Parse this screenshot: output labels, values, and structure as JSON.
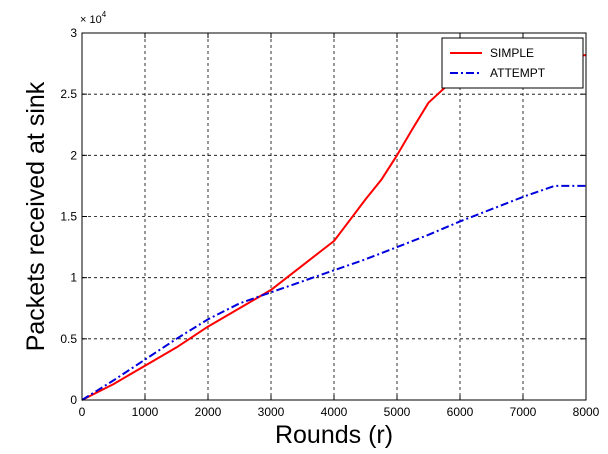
{
  "chart_data": {
    "type": "line",
    "title": "",
    "xlabel": "Rounds (r)",
    "ylabel": "Packets received at sink",
    "y_exponent_base": "× 10",
    "y_exponent_power": "4",
    "xlim": [
      0,
      8000
    ],
    "ylim": [
      0,
      3
    ],
    "x_ticks": [
      0,
      1000,
      2000,
      3000,
      4000,
      5000,
      6000,
      7000,
      8000
    ],
    "x_tick_labels": [
      "0",
      "1000",
      "2000",
      "3000",
      "4000",
      "5000",
      "6000",
      "7000",
      "8000"
    ],
    "y_ticks": [
      0,
      0.5,
      1,
      1.5,
      2,
      2.5,
      3
    ],
    "y_tick_labels": [
      "0",
      "0.5",
      "1",
      "1.5",
      "2",
      "2.5",
      "3"
    ],
    "grid": true,
    "legend_position": "top-right",
    "series": [
      {
        "name": "SIMPLE",
        "color": "#ff0000",
        "style": "solid",
        "x": [
          0,
          500,
          1000,
          1500,
          2000,
          2500,
          3000,
          3500,
          4000,
          4250,
          4500,
          4750,
          5000,
          5250,
          5500,
          5750,
          6000,
          7000,
          8000
        ],
        "y": [
          0,
          0.13,
          0.28,
          0.43,
          0.6,
          0.75,
          0.9,
          1.1,
          1.3,
          1.47,
          1.64,
          1.8,
          2.0,
          2.22,
          2.43,
          2.55,
          2.65,
          2.75,
          2.82
        ]
      },
      {
        "name": "ATTEMPT",
        "color": "#0000dd",
        "style": "dashdot",
        "x": [
          0,
          500,
          1000,
          1500,
          2000,
          2500,
          3000,
          3500,
          4000,
          4500,
          5000,
          5500,
          6000,
          6500,
          7000,
          7500,
          8000
        ],
        "y": [
          0,
          0.16,
          0.33,
          0.5,
          0.66,
          0.79,
          0.88,
          0.97,
          1.06,
          1.15,
          1.25,
          1.35,
          1.46,
          1.56,
          1.66,
          1.75,
          1.75
        ]
      }
    ]
  }
}
